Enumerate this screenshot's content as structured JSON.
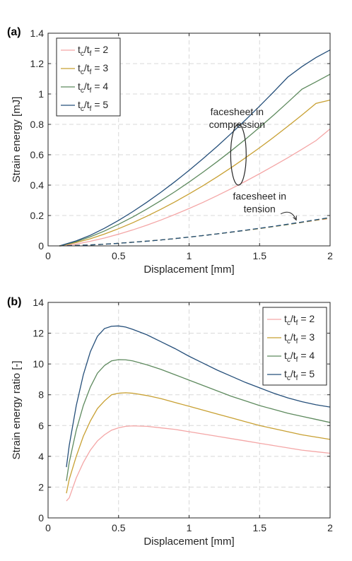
{
  "panel_labels": [
    "(a)",
    "(b)"
  ],
  "chart_data": [
    {
      "type": "line",
      "panel": "(a)",
      "xlabel": "Displacement [mm]",
      "ylabel": "Strain energy [mJ]",
      "xlim": [
        0,
        2
      ],
      "ylim": [
        0,
        1.4
      ],
      "xticks": [
        0,
        0.5,
        1,
        1.5,
        2
      ],
      "xtick_labels": [
        "0",
        "0.5",
        "1",
        "1.5",
        "2"
      ],
      "yticks": [
        0,
        0.2,
        0.4,
        0.6,
        0.8,
        1.0,
        1.2,
        1.4
      ],
      "ytick_labels": [
        "0",
        "0.2",
        "0.4",
        "0.6",
        "0.8",
        "1",
        "1.2",
        "1.4"
      ],
      "grid": true,
      "legend_position": "top-left",
      "legend": [
        {
          "base1": "t",
          "sub1": "c",
          "base2": "/t",
          "sub2": "f",
          "suffix": " = 2",
          "color": "#f4a6a6"
        },
        {
          "base1": "t",
          "sub1": "c",
          "base2": "/t",
          "sub2": "f",
          "suffix": " = 3",
          "color": "#c8a032"
        },
        {
          "base1": "t",
          "sub1": "c",
          "base2": "/t",
          "sub2": "f",
          "suffix": " = 4",
          "color": "#5e8a5e"
        },
        {
          "base1": "t",
          "sub1": "c",
          "base2": "/t",
          "sub2": "f",
          "suffix": " = 5",
          "color": "#254f7a"
        }
      ],
      "x": [
        0.08,
        0.1,
        0.2,
        0.3,
        0.4,
        0.5,
        0.6,
        0.7,
        0.8,
        0.9,
        1.0,
        1.1,
        1.2,
        1.3,
        1.4,
        1.5,
        1.6,
        1.7,
        1.8,
        1.9,
        2.0
      ],
      "series": [
        {
          "values": [
            0.0,
            0.002,
            0.012,
            0.03,
            0.052,
            0.077,
            0.105,
            0.136,
            0.17,
            0.207,
            0.246,
            0.287,
            0.331,
            0.377,
            0.425,
            0.475,
            0.527,
            0.58,
            0.636,
            0.693,
            0.77
          ],
          "color": "#f4a6a6",
          "style": "solid"
        },
        {
          "values": [
            0.0,
            0.003,
            0.022,
            0.047,
            0.078,
            0.113,
            0.152,
            0.195,
            0.241,
            0.29,
            0.342,
            0.397,
            0.455,
            0.516,
            0.58,
            0.646,
            0.715,
            0.787,
            0.861,
            0.938,
            0.96
          ],
          "color": "#c8a032",
          "style": "solid"
        },
        {
          "values": [
            0.0,
            0.004,
            0.028,
            0.06,
            0.098,
            0.142,
            0.19,
            0.242,
            0.298,
            0.357,
            0.42,
            0.486,
            0.555,
            0.627,
            0.702,
            0.78,
            0.861,
            0.945,
            1.031,
            1.08,
            1.13
          ],
          "color": "#5e8a5e",
          "style": "solid"
        },
        {
          "values": [
            0.0,
            0.005,
            0.033,
            0.07,
            0.116,
            0.168,
            0.225,
            0.287,
            0.353,
            0.423,
            0.497,
            0.575,
            0.656,
            0.741,
            0.829,
            0.92,
            1.014,
            1.111,
            1.18,
            1.24,
            1.29
          ],
          "color": "#254f7a",
          "style": "solid"
        },
        {
          "values": [
            0.0,
            0.0005,
            0.003,
            0.006,
            0.011,
            0.017,
            0.024,
            0.031,
            0.039,
            0.048,
            0.058,
            0.068,
            0.079,
            0.09,
            0.102,
            0.114,
            0.127,
            0.14,
            0.154,
            0.168,
            0.18
          ],
          "color": "#f4a6a6",
          "style": "dashed"
        },
        {
          "values": [
            0.0,
            0.0005,
            0.003,
            0.006,
            0.011,
            0.017,
            0.024,
            0.031,
            0.039,
            0.048,
            0.058,
            0.068,
            0.079,
            0.09,
            0.102,
            0.114,
            0.127,
            0.14,
            0.155,
            0.169,
            0.183
          ],
          "color": "#c8a032",
          "style": "dashed"
        },
        {
          "values": [
            0.0,
            0.0005,
            0.003,
            0.006,
            0.011,
            0.017,
            0.024,
            0.031,
            0.039,
            0.048,
            0.058,
            0.068,
            0.079,
            0.091,
            0.103,
            0.115,
            0.128,
            0.141,
            0.156,
            0.171,
            0.186
          ],
          "color": "#5e8a5e",
          "style": "dashed"
        },
        {
          "values": [
            0.0,
            0.0005,
            0.003,
            0.006,
            0.011,
            0.017,
            0.024,
            0.031,
            0.039,
            0.048,
            0.058,
            0.068,
            0.079,
            0.091,
            0.103,
            0.116,
            0.129,
            0.143,
            0.157,
            0.172,
            0.187
          ],
          "color": "#254f7a",
          "style": "dashed"
        }
      ],
      "annotations": [
        {
          "lines": [
            "facesheet in",
            "compression"
          ],
          "x": 1.34,
          "y": 0.86,
          "ellipse": {
            "cx": 1.35,
            "cy": 0.6,
            "rx": 0.055,
            "ry": 0.2
          },
          "pointer_to": [
            1.33,
            0.795
          ]
        },
        {
          "lines": [
            "facesheet in",
            "tension"
          ],
          "x": 1.5,
          "y": 0.305,
          "pointer_from": [
            1.65,
            0.21
          ],
          "pointer_to": [
            1.76,
            0.17
          ]
        }
      ]
    },
    {
      "type": "line",
      "panel": "(b)",
      "xlabel": "Displacement [mm]",
      "ylabel": "Strain energy ratio [-]",
      "xlim": [
        0,
        2
      ],
      "ylim": [
        0,
        14
      ],
      "xticks": [
        0,
        0.5,
        1,
        1.5,
        2
      ],
      "xtick_labels": [
        "0",
        "0.5",
        "1",
        "1.5",
        "2"
      ],
      "yticks": [
        0,
        2,
        4,
        6,
        8,
        10,
        12,
        14
      ],
      "ytick_labels": [
        "0",
        "2",
        "4",
        "6",
        "8",
        "10",
        "12",
        "14"
      ],
      "grid": true,
      "legend_position": "top-right",
      "legend": [
        {
          "base1": "t",
          "sub1": "c",
          "base2": "/t",
          "sub2": "f",
          "suffix": " = 2",
          "color": "#f4a6a6"
        },
        {
          "base1": "t",
          "sub1": "c",
          "base2": "/t",
          "sub2": "f",
          "suffix": " = 3",
          "color": "#c8a032"
        },
        {
          "base1": "t",
          "sub1": "c",
          "base2": "/t",
          "sub2": "f",
          "suffix": " = 4",
          "color": "#5e8a5e"
        },
        {
          "base1": "t",
          "sub1": "c",
          "base2": "/t",
          "sub2": "f",
          "suffix": " = 5",
          "color": "#254f7a"
        }
      ],
      "x": [
        0.13,
        0.15,
        0.2,
        0.25,
        0.3,
        0.35,
        0.4,
        0.45,
        0.5,
        0.55,
        0.6,
        0.7,
        0.8,
        0.9,
        1.0,
        1.1,
        1.2,
        1.3,
        1.4,
        1.5,
        1.6,
        1.7,
        1.8,
        1.9,
        2.0
      ],
      "series": [
        {
          "values": [
            1.1,
            1.3,
            2.6,
            3.6,
            4.4,
            5.0,
            5.4,
            5.7,
            5.85,
            5.95,
            5.98,
            5.95,
            5.85,
            5.75,
            5.6,
            5.45,
            5.3,
            5.15,
            5.0,
            4.85,
            4.7,
            4.55,
            4.4,
            4.3,
            4.2
          ],
          "color": "#f4a6a6"
        },
        {
          "values": [
            1.6,
            2.5,
            4.0,
            5.3,
            6.3,
            7.1,
            7.6,
            8.0,
            8.1,
            8.13,
            8.1,
            7.95,
            7.75,
            7.5,
            7.25,
            7.0,
            6.75,
            6.5,
            6.25,
            6.0,
            5.8,
            5.6,
            5.4,
            5.25,
            5.1
          ],
          "color": "#c8a032"
        },
        {
          "values": [
            2.4,
            3.6,
            5.7,
            7.3,
            8.5,
            9.4,
            9.9,
            10.2,
            10.28,
            10.27,
            10.2,
            9.95,
            9.65,
            9.3,
            8.95,
            8.6,
            8.25,
            7.9,
            7.6,
            7.3,
            7.05,
            6.8,
            6.6,
            6.4,
            6.2
          ],
          "color": "#5e8a5e"
        },
        {
          "values": [
            3.3,
            4.7,
            7.3,
            9.3,
            10.8,
            11.8,
            12.3,
            12.45,
            12.47,
            12.4,
            12.25,
            11.9,
            11.45,
            11.0,
            10.5,
            10.05,
            9.6,
            9.2,
            8.8,
            8.45,
            8.1,
            7.8,
            7.55,
            7.35,
            7.2
          ],
          "color": "#254f7a"
        }
      ]
    }
  ]
}
